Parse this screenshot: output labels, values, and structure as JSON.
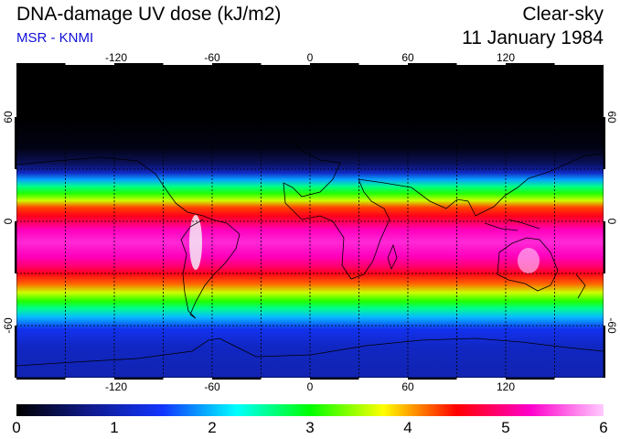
{
  "header": {
    "title": "DNA-damage UV dose (kJ/m2)",
    "credit": "MSR - KNMI",
    "sky": "Clear-sky",
    "date": "11 January 1984"
  },
  "map": {
    "lon_ticks": [
      "-120",
      "-60",
      "0",
      "60",
      "120"
    ],
    "lat_ticks_left": [
      "60",
      "0",
      "-60"
    ],
    "lat_ticks_right": [
      "60",
      "0",
      "-60"
    ],
    "lon_range": [
      -180,
      180
    ],
    "lat_range": [
      -90,
      90
    ],
    "grid_lon": [
      -150,
      -120,
      -90,
      -60,
      -30,
      0,
      30,
      60,
      90,
      120,
      150
    ],
    "grid_lat": [
      -60,
      -30,
      0,
      30,
      60
    ],
    "dose_profile": [
      {
        "lat": 90,
        "dose": 0.0
      },
      {
        "lat": 60,
        "dose": 0.0
      },
      {
        "lat": 42,
        "dose": 0.1
      },
      {
        "lat": 33,
        "dose": 0.5
      },
      {
        "lat": 28,
        "dose": 1.1
      },
      {
        "lat": 24,
        "dose": 1.9
      },
      {
        "lat": 20,
        "dose": 2.6
      },
      {
        "lat": 16,
        "dose": 3.1
      },
      {
        "lat": 12,
        "dose": 3.6
      },
      {
        "lat": 8,
        "dose": 4.3
      },
      {
        "lat": 3,
        "dose": 4.6
      },
      {
        "lat": 0,
        "dose": 4.8
      },
      {
        "lat": -5,
        "dose": 5.2
      },
      {
        "lat": -12,
        "dose": 5.4
      },
      {
        "lat": -20,
        "dose": 5.2
      },
      {
        "lat": -26,
        "dose": 4.9
      },
      {
        "lat": -30,
        "dose": 4.6
      },
      {
        "lat": -36,
        "dose": 4.2
      },
      {
        "lat": -41,
        "dose": 3.6
      },
      {
        "lat": -46,
        "dose": 3.1
      },
      {
        "lat": -50,
        "dose": 2.6
      },
      {
        "lat": -55,
        "dose": 2.0
      },
      {
        "lat": -62,
        "dose": 1.4
      },
      {
        "lat": -72,
        "dose": 1.1
      },
      {
        "lat": -90,
        "dose": 1.0
      }
    ]
  },
  "colorbar": {
    "labels": [
      "0",
      "1",
      "2",
      "3",
      "4",
      "5",
      "6"
    ],
    "min": 0,
    "max": 6,
    "stops": [
      "#000000",
      "#101a8c",
      "#1236ff",
      "#00ffff",
      "#00ff00",
      "#ffff00",
      "#ff0000",
      "#ff00cc",
      "#ffccff"
    ]
  }
}
